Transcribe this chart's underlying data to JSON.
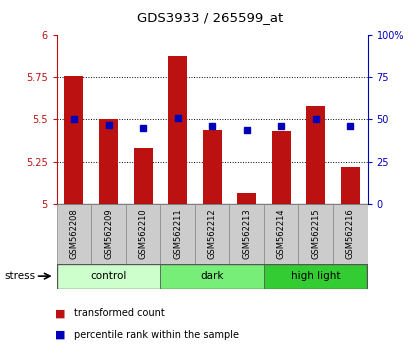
{
  "title": "GDS3933 / 265599_at",
  "samples": [
    "GSM562208",
    "GSM562209",
    "GSM562210",
    "GSM562211",
    "GSM562212",
    "GSM562213",
    "GSM562214",
    "GSM562215",
    "GSM562216"
  ],
  "transformed_counts": [
    5.76,
    5.5,
    5.33,
    5.88,
    5.44,
    5.06,
    5.43,
    5.58,
    5.22
  ],
  "percentile_ranks": [
    50,
    47,
    45,
    51,
    46,
    44,
    46,
    50,
    46
  ],
  "ylim_left": [
    5.0,
    6.0
  ],
  "ylim_right": [
    0,
    100
  ],
  "yticks_left": [
    5.0,
    5.25,
    5.5,
    5.75,
    6.0
  ],
  "yticks_right": [
    0,
    25,
    50,
    75,
    100
  ],
  "ytick_labels_left": [
    "5",
    "5.25",
    "5.5",
    "5.75",
    "6"
  ],
  "ytick_labels_right": [
    "0",
    "25",
    "50",
    "75",
    "100%"
  ],
  "bar_color": "#bb1111",
  "dot_color": "#0000bb",
  "grid_color": "#000000",
  "bg_color": "#ffffff",
  "groups": [
    {
      "label": "control",
      "indices": [
        0,
        1,
        2
      ],
      "color": "#ccffcc"
    },
    {
      "label": "dark",
      "indices": [
        3,
        4,
        5
      ],
      "color": "#77ee77"
    },
    {
      "label": "high light",
      "indices": [
        6,
        7,
        8
      ],
      "color": "#33cc33"
    }
  ],
  "stress_label": "stress",
  "bar_width": 0.55,
  "gridline_vals": [
    5.25,
    5.5,
    5.75
  ]
}
